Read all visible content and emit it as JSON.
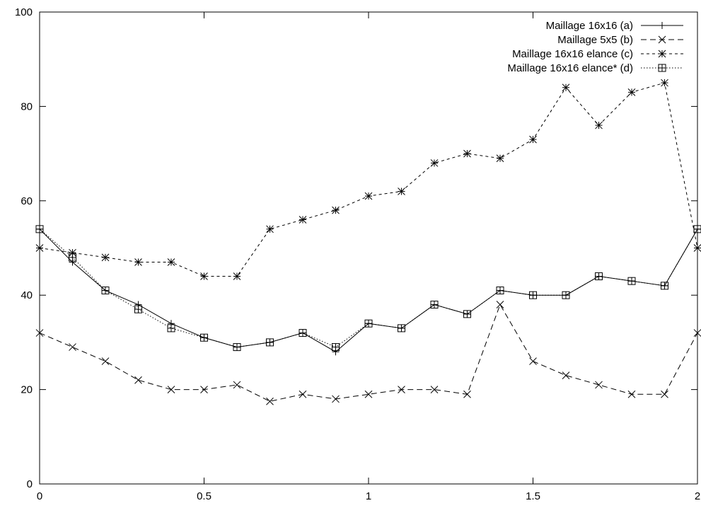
{
  "chart_data": {
    "type": "line",
    "title": "",
    "xlabel": "",
    "ylabel": "",
    "xlim": [
      0,
      2
    ],
    "ylim": [
      0,
      100
    ],
    "x_ticks": [
      0,
      0.5,
      1,
      1.5,
      2
    ],
    "x_tick_labels": [
      "0",
      "0.5",
      "1",
      "1.5",
      "2"
    ],
    "y_ticks": [
      0,
      20,
      40,
      60,
      80,
      100
    ],
    "y_tick_labels": [
      "0",
      "20",
      "40",
      "60",
      "80",
      "100"
    ],
    "grid": false,
    "legend_position": "top-right",
    "x": [
      0,
      0.1,
      0.2,
      0.3,
      0.4,
      0.5,
      0.6,
      0.7,
      0.8,
      0.9,
      1.0,
      1.1,
      1.2,
      1.3,
      1.4,
      1.5,
      1.6,
      1.7,
      1.8,
      1.9,
      2.0
    ],
    "series": [
      {
        "name": "Maillage 16x16 (a)",
        "marker": "plus",
        "dash": "solid",
        "values": [
          54,
          47,
          41,
          38,
          34,
          31,
          29,
          30,
          32,
          28,
          34,
          33,
          38,
          36,
          41,
          40,
          40,
          44,
          43,
          42,
          54
        ]
      },
      {
        "name": "Maillage 5x5 (b)",
        "marker": "cross",
        "dash": "dashed",
        "values": [
          32,
          29,
          26,
          22,
          20,
          20,
          21,
          17.5,
          19,
          18,
          19,
          20,
          20,
          19,
          38,
          26,
          23,
          21,
          19,
          19,
          32
        ]
      },
      {
        "name": "Maillage 16x16 elance (c)",
        "marker": "star",
        "dash": "short-dashed",
        "values": [
          50,
          49,
          48,
          47,
          47,
          44,
          44,
          54,
          56,
          58,
          61,
          62,
          68,
          70,
          69,
          73,
          84,
          76,
          83,
          85,
          50
        ]
      },
      {
        "name": "Maillage 16x16 elance* (d)",
        "marker": "boxed-plus",
        "dash": "dotted",
        "values": [
          54,
          48,
          41,
          37,
          33,
          31,
          29,
          30,
          32,
          29,
          34,
          33,
          38,
          36,
          41,
          40,
          40,
          44,
          43,
          42,
          54
        ]
      }
    ]
  }
}
